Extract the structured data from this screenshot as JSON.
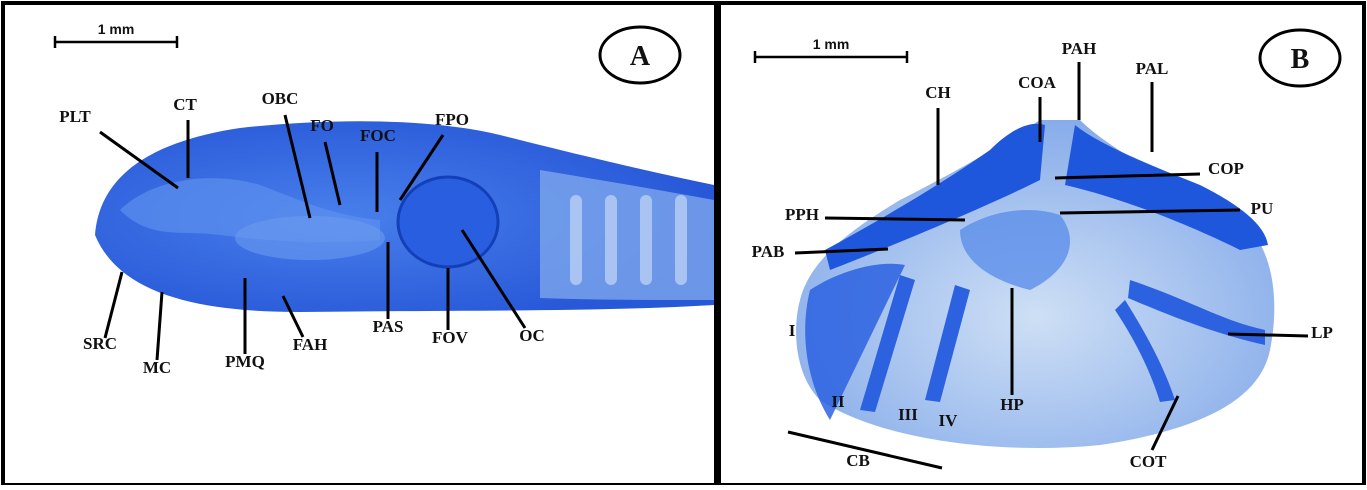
{
  "panels": [
    {
      "letter": "A",
      "scale_bar": "1 mm",
      "labels": [
        "PLT",
        "CT",
        "OBC",
        "FO",
        "FOC",
        "FPO",
        "SRC",
        "MC",
        "PMQ",
        "FAH",
        "PAS",
        "FOV",
        "OC"
      ]
    },
    {
      "letter": "B",
      "scale_bar": "1 mm",
      "labels": [
        "PAH",
        "PAL",
        "COA",
        "CH",
        "COP",
        "PPH",
        "PU",
        "PAB",
        "LP",
        "I",
        "II",
        "III",
        "IV",
        "HP",
        "CB",
        "COT"
      ]
    }
  ]
}
